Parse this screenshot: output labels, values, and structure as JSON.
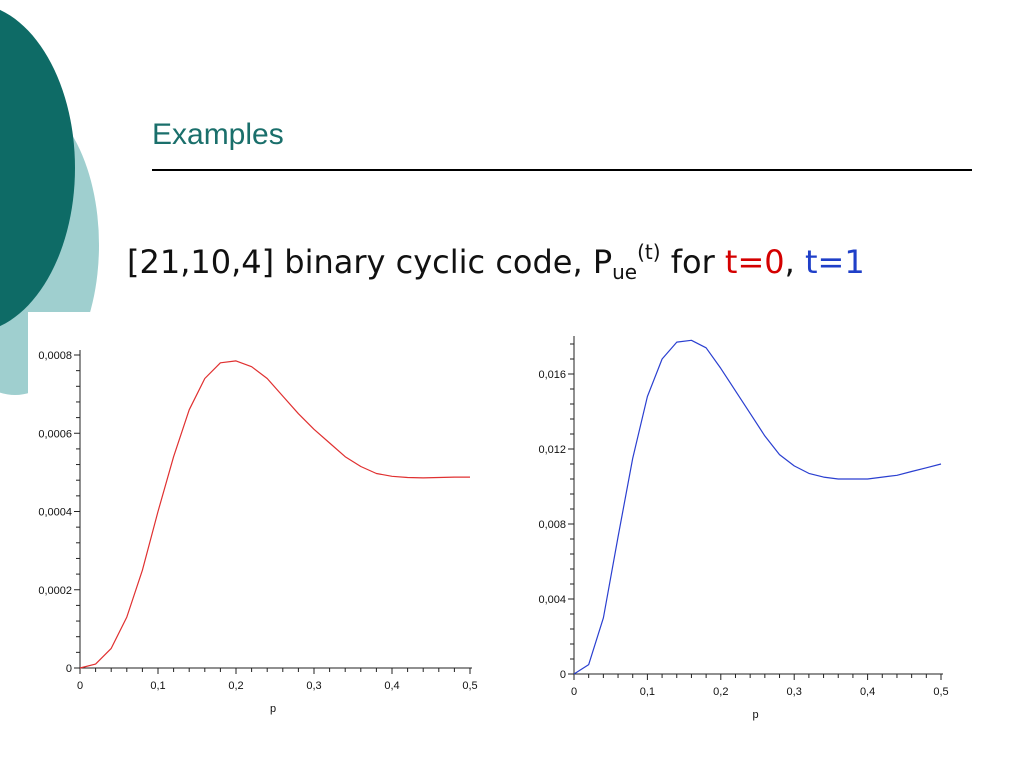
{
  "slide": {
    "title": "Examples",
    "subtitle": {
      "prefix": "[21,10,4] binary cyclic code, P",
      "sub": "ue",
      "sup": "(t)",
      "middle": " for ",
      "t0": "t=0",
      "comma": ", ",
      "t1": "t=1"
    }
  },
  "colors": {
    "accent_dark": "#0e6b66",
    "accent_light": "#9fcfcf",
    "title": "#1a6f6b",
    "t0_series": "#e03030",
    "t1_series": "#2a3fd0"
  },
  "chart_data": [
    {
      "type": "line",
      "xlabel": "p",
      "ylabel": "",
      "xlim": [
        0,
        0.5
      ],
      "ylim": [
        0,
        0.0008
      ],
      "xticks": [
        "0",
        "0,1",
        "0,2",
        "0,3",
        "0,4",
        "0,5"
      ],
      "yticks": [
        "0",
        "0,0002",
        "0,0004",
        "0,0006",
        "0,0008"
      ],
      "ytick_values": [
        0,
        0.0002,
        0.0004,
        0.0006,
        0.0008
      ],
      "series": [
        {
          "color": "#e03030",
          "x": [
            0,
            0.02,
            0.04,
            0.06,
            0.08,
            0.1,
            0.12,
            0.14,
            0.16,
            0.18,
            0.2,
            0.22,
            0.24,
            0.26,
            0.28,
            0.3,
            0.32,
            0.34,
            0.36,
            0.38,
            0.4,
            0.42,
            0.44,
            0.46,
            0.48,
            0.5
          ],
          "y": [
            0,
            1e-05,
            5e-05,
            0.00013,
            0.00025,
            0.0004,
            0.00054,
            0.00066,
            0.00074,
            0.00078,
            0.000785,
            0.00077,
            0.00074,
            0.000695,
            0.00065,
            0.00061,
            0.000575,
            0.00054,
            0.000515,
            0.000497,
            0.00049,
            0.000487,
            0.000486,
            0.000487,
            0.000488,
            0.000488
          ]
        }
      ]
    },
    {
      "type": "line",
      "xlabel": "p",
      "ylabel": "",
      "xlim": [
        0,
        0.5
      ],
      "ylim": [
        0,
        0.018
      ],
      "xticks": [
        "0",
        "0,1",
        "0,2",
        "0,3",
        "0,4",
        "0,5"
      ],
      "yticks": [
        "0",
        "0,004",
        "0,008",
        "0,012",
        "0,016"
      ],
      "ytick_values": [
        0,
        0.004,
        0.008,
        0.012,
        0.016
      ],
      "series": [
        {
          "color": "#2a3fd0",
          "x": [
            0,
            0.02,
            0.04,
            0.06,
            0.08,
            0.1,
            0.12,
            0.14,
            0.16,
            0.18,
            0.2,
            0.22,
            0.24,
            0.26,
            0.28,
            0.3,
            0.32,
            0.34,
            0.36,
            0.38,
            0.4,
            0.42,
            0.44,
            0.46,
            0.48,
            0.5
          ],
          "y": [
            0,
            0.0005,
            0.003,
            0.0073,
            0.0115,
            0.0148,
            0.0168,
            0.0177,
            0.0178,
            0.0174,
            0.0163,
            0.0151,
            0.0139,
            0.0127,
            0.0117,
            0.0111,
            0.0107,
            0.0105,
            0.0104,
            0.0104,
            0.0104,
            0.0105,
            0.0106,
            0.0108,
            0.011,
            0.0112
          ]
        }
      ]
    }
  ]
}
